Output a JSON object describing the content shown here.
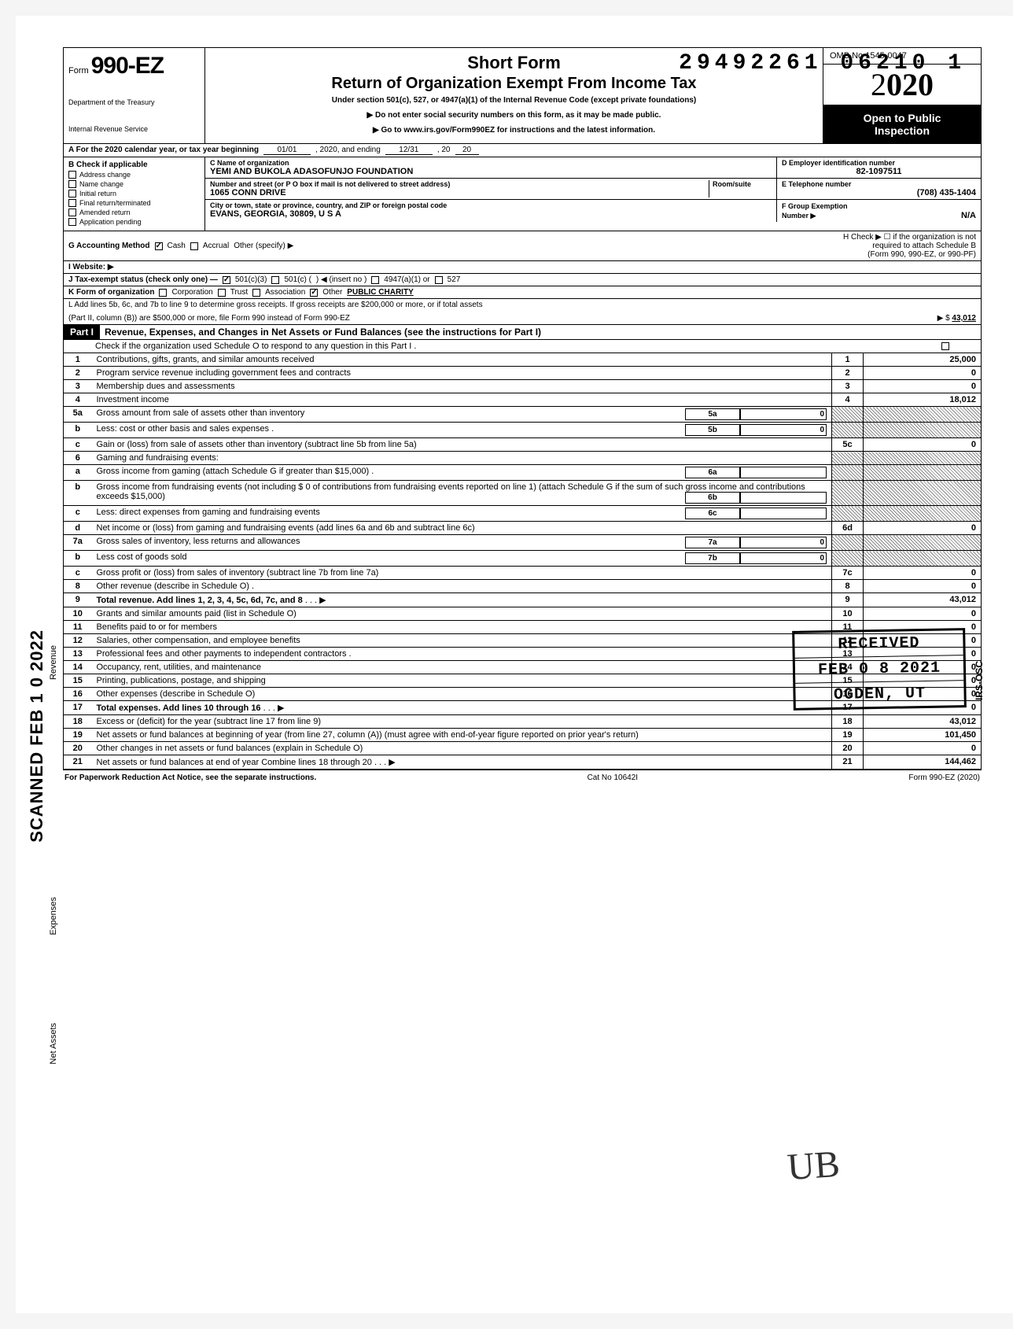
{
  "doc_number": "29492261 06210 1",
  "form": {
    "prefix": "Form",
    "number": "990-EZ",
    "dept1": "Department of the Treasury",
    "dept2": "Internal Revenue Service"
  },
  "header": {
    "short_form": "Short Form",
    "title": "Return of Organization Exempt From Income Tax",
    "subtitle": "Under section 501(c), 527, or 4947(a)(1) of the Internal Revenue Code (except private foundations)",
    "line1": "▶ Do not enter social security numbers on this form, as it may be made public.",
    "line2": "▶ Go to www.irs.gov/Form990EZ for instructions and the latest information.",
    "omb": "OMB No 1545-0047",
    "year_prefix": "2",
    "year_bold": "020",
    "open1": "Open to Public",
    "open2": "Inspection"
  },
  "row_a": {
    "label": "A For the 2020 calendar year, or tax year beginning",
    "begin": "01/01",
    "mid": ", 2020, and ending",
    "end": "12/31",
    "yr_prefix": ", 20",
    "yr": "20"
  },
  "b": {
    "label": "B Check if applicable",
    "items": [
      "Address change",
      "Name change",
      "Initial return",
      "Final return/terminated",
      "Amended return",
      "Application pending"
    ]
  },
  "c": {
    "label": "C Name of organization",
    "name": "YEMI AND BUKOLA ADASOFUNJO FOUNDATION",
    "addr_label": "Number and street (or P O box if mail is not delivered to street address)",
    "room_label": "Room/suite",
    "addr": "1065 CONN DRIVE",
    "city_label": "City or town, state or province, country, and ZIP or foreign postal code",
    "city": "EVANS, GEORGIA, 30809, U S A"
  },
  "d": {
    "label": "D Employer identification number",
    "val": "82-1097511"
  },
  "e": {
    "label": "E Telephone number",
    "val": "(708) 435-1404"
  },
  "f": {
    "label": "F Group Exemption",
    "label2": "Number ▶",
    "val": "N/A"
  },
  "g": {
    "label": "G Accounting Method",
    "cash": "Cash",
    "accrual": "Accrual",
    "other": "Other (specify) ▶"
  },
  "h": {
    "label": "H Check ▶ ☐ if the organization is not",
    "label2": "required to attach Schedule B",
    "label3": "(Form 990, 990-EZ, or 990-PF)"
  },
  "i": {
    "label": "I Website: ▶"
  },
  "j": {
    "label": "J Tax-exempt status (check only one) —",
    "c3": "501(c)(3)",
    "c": "501(c) (",
    "insert": ") ◀ (insert no )",
    "a1": "4947(a)(1) or",
    "s527": "527"
  },
  "k": {
    "label": "K Form of organization",
    "corp": "Corporation",
    "trust": "Trust",
    "assoc": "Association",
    "other": "Other",
    "other_val": "PUBLIC CHARITY"
  },
  "l": {
    "line1": "L Add lines 5b, 6c, and 7b to line 9 to determine gross receipts. If gross receipts are $200,000 or more, or if total assets",
    "line2": "(Part II, column (B)) are $500,000 or more, file Form 990 instead of Form 990-EZ",
    "arrow": "▶  $",
    "val": "43,012"
  },
  "part1": {
    "tag": "Part I",
    "title": "Revenue, Expenses, and Changes in Net Assets or Fund Balances (see the instructions for Part I)",
    "check": "Check if the organization used Schedule O to respond to any question in this Part I ."
  },
  "lines": [
    {
      "n": "1",
      "d": "Contributions, gifts, grants, and similar amounts received",
      "box": "1",
      "amt": "25,000"
    },
    {
      "n": "2",
      "d": "Program service revenue including government fees and contracts",
      "box": "2",
      "amt": "0"
    },
    {
      "n": "3",
      "d": "Membership dues and assessments",
      "box": "3",
      "amt": "0"
    },
    {
      "n": "4",
      "d": "Investment income",
      "box": "4",
      "amt": "18,012"
    },
    {
      "n": "5a",
      "d": "Gross amount from sale of assets other than inventory",
      "ibox": "5a",
      "ival": "0",
      "shade": true
    },
    {
      "n": "b",
      "d": "Less: cost or other basis and sales expenses .",
      "ibox": "5b",
      "ival": "0",
      "shade": true
    },
    {
      "n": "c",
      "d": "Gain or (loss) from sale of assets other than inventory (subtract line 5b from line 5a)",
      "box": "5c",
      "amt": "0"
    },
    {
      "n": "6",
      "d": "Gaming and fundraising events:",
      "shade": true
    },
    {
      "n": "a",
      "d": "Gross income from gaming (attach Schedule G if greater than $15,000) .",
      "ibox": "6a",
      "ival": "",
      "shade": true
    },
    {
      "n": "b",
      "d": "Gross income from fundraising events (not including  $                 0  of contributions from fundraising events reported on line 1) (attach Schedule G if the sum of such gross income and contributions exceeds $15,000)",
      "ibox": "6b",
      "ival": "",
      "shade": true
    },
    {
      "n": "c",
      "d": "Less: direct expenses from gaming and fundraising events",
      "ibox": "6c",
      "ival": "",
      "shade": true
    },
    {
      "n": "d",
      "d": "Net income or (loss) from gaming and fundraising events (add lines 6a and 6b and subtract line 6c)",
      "box": "6d",
      "amt": "0"
    },
    {
      "n": "7a",
      "d": "Gross sales of inventory, less returns and allowances",
      "ibox": "7a",
      "ival": "0",
      "shade": true
    },
    {
      "n": "b",
      "d": "Less cost of goods sold",
      "ibox": "7b",
      "ival": "0",
      "shade": true
    },
    {
      "n": "c",
      "d": "Gross profit or (loss) from sales of inventory (subtract line 7b from line 7a)",
      "box": "7c",
      "amt": "0"
    },
    {
      "n": "8",
      "d": "Other revenue (describe in Schedule O) .",
      "box": "8",
      "amt": "0"
    },
    {
      "n": "9",
      "d": "Total revenue. Add lines 1, 2, 3, 4, 5c, 6d, 7c, and 8",
      "box": "9",
      "amt": "43,012",
      "bold": true,
      "arrow": true
    },
    {
      "n": "10",
      "d": "Grants and similar amounts paid (list in Schedule O)",
      "box": "10",
      "amt": "0"
    },
    {
      "n": "11",
      "d": "Benefits paid to or for members",
      "box": "11",
      "amt": "0"
    },
    {
      "n": "12",
      "d": "Salaries, other compensation, and employee benefits",
      "box": "12",
      "amt": "0"
    },
    {
      "n": "13",
      "d": "Professional fees and other payments to independent contractors .",
      "box": "13",
      "amt": "0"
    },
    {
      "n": "14",
      "d": "Occupancy, rent, utilities, and maintenance",
      "box": "14",
      "amt": "0"
    },
    {
      "n": "15",
      "d": "Printing, publications, postage, and shipping",
      "box": "15",
      "amt": "0"
    },
    {
      "n": "16",
      "d": "Other expenses (describe in Schedule O)",
      "box": "16",
      "amt": "0"
    },
    {
      "n": "17",
      "d": "Total expenses. Add lines 10 through 16",
      "box": "17",
      "amt": "0",
      "bold": true,
      "arrow": true
    },
    {
      "n": "18",
      "d": "Excess or (deficit) for the year (subtract line 17 from line 9)",
      "box": "18",
      "amt": "43,012"
    },
    {
      "n": "19",
      "d": "Net assets or fund balances at beginning of year (from line 27, column (A)) (must agree with end-of-year figure reported on prior year's return)",
      "box": "19",
      "amt": "101,450"
    },
    {
      "n": "20",
      "d": "Other changes in net assets or fund balances (explain in Schedule O)",
      "box": "20",
      "amt": "0"
    },
    {
      "n": "21",
      "d": "Net assets or fund balances at end of year Combine lines 18 through 20",
      "box": "21",
      "amt": "144,462",
      "arrow": true
    }
  ],
  "vert": {
    "revenue": "Revenue",
    "expenses": "Expenses",
    "netassets": "Net Assets"
  },
  "scanned": "SCANNED FEB 1 0 2022",
  "stamp": {
    "l1": "RECEIVED",
    "l2": "FEB 0 8 2021",
    "l3": "OGDEN, UT"
  },
  "irs_osc": "IRS-OSC",
  "footer": {
    "left": "For Paperwork Reduction Act Notice, see the separate instructions.",
    "mid": "Cat No 10642I",
    "right": "Form 990-EZ (2020)"
  },
  "sig": "UB"
}
